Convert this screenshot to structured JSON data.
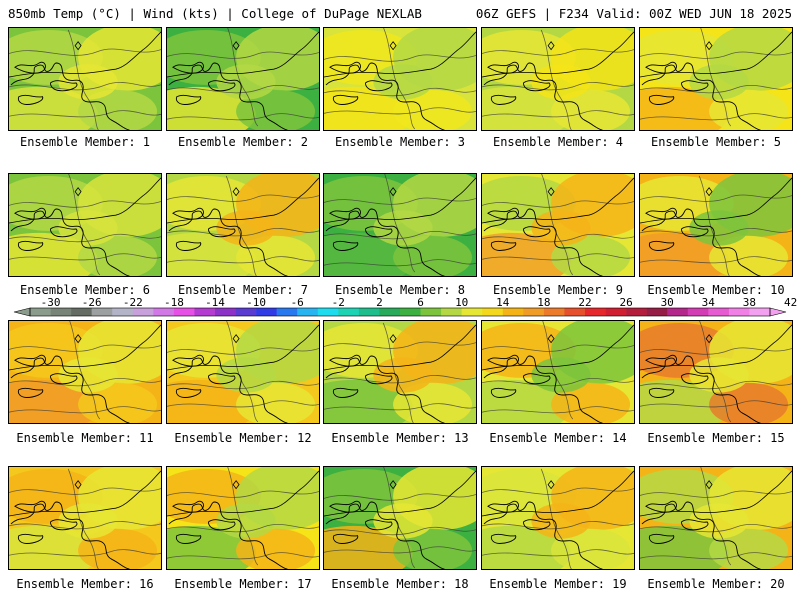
{
  "header": {
    "left": "850mb Temp (°C) | Wind (kts) | College of DuPage NEXLAB",
    "right": "06Z GEFS | F234 Valid: 00Z WED JUN 18 2025"
  },
  "member_label_prefix": "Ensemble Member:",
  "members": [
    {
      "num": "1",
      "c": [
        "#7cc43c",
        "#b4d844",
        "#e6e634",
        "#d8e43c"
      ]
    },
    {
      "num": "2",
      "c": [
        "#3cb040",
        "#7cc43c",
        "#b4d844",
        "#e6e634"
      ]
    },
    {
      "num": "3",
      "c": [
        "#d8e43c",
        "#f0e81c",
        "#b4d844",
        "#f4e418"
      ]
    },
    {
      "num": "4",
      "c": [
        "#b4d844",
        "#e6e634",
        "#f4e418",
        "#d8e43c"
      ]
    },
    {
      "num": "5",
      "c": [
        "#f4e418",
        "#e6e634",
        "#b4d844",
        "#f4b418"
      ]
    },
    {
      "num": "6",
      "c": [
        "#7cc43c",
        "#b4d844",
        "#d8e43c",
        "#e6e634"
      ]
    },
    {
      "num": "7",
      "c": [
        "#b4d844",
        "#e6e634",
        "#f4b418",
        "#d8e43c"
      ]
    },
    {
      "num": "8",
      "c": [
        "#3cb040",
        "#7cc43c",
        "#b4d844",
        "#58b840"
      ]
    },
    {
      "num": "9",
      "c": [
        "#e6e634",
        "#b4d844",
        "#f4b418",
        "#f0a028"
      ]
    },
    {
      "num": "10",
      "c": [
        "#f4b418",
        "#e6e634",
        "#7cc43c",
        "#f09c28"
      ]
    },
    {
      "num": "11",
      "c": [
        "#f4b418",
        "#f4c81c",
        "#e6e634",
        "#f09c28"
      ]
    },
    {
      "num": "12",
      "c": [
        "#f4c81c",
        "#e6e634",
        "#b4d844",
        "#f4b418"
      ]
    },
    {
      "num": "13",
      "c": [
        "#b4d844",
        "#e6e634",
        "#f4b418",
        "#7cc43c"
      ]
    },
    {
      "num": "14",
      "c": [
        "#e6e634",
        "#f4b418",
        "#7cc43c",
        "#b4d844"
      ]
    },
    {
      "num": "15",
      "c": [
        "#f4b418",
        "#e67c2c",
        "#e6e634",
        "#b4d844"
      ]
    },
    {
      "num": "16",
      "c": [
        "#f4c81c",
        "#f4b418",
        "#e6e634",
        "#d8e43c"
      ]
    },
    {
      "num": "17",
      "c": [
        "#f4e418",
        "#f4b418",
        "#b4d844",
        "#7cc43c"
      ]
    },
    {
      "num": "18",
      "c": [
        "#3cb040",
        "#7cc43c",
        "#e6e634",
        "#f4b418"
      ]
    },
    {
      "num": "19",
      "c": [
        "#e6e634",
        "#d8e43c",
        "#f4b418",
        "#b4d844"
      ]
    },
    {
      "num": "20",
      "c": [
        "#f4b418",
        "#b4d844",
        "#e6e634",
        "#7cc43c"
      ]
    }
  ],
  "colorbar": {
    "labels": [
      "-30",
      "-26",
      "-22",
      "-18",
      "-14",
      "-10",
      "-6",
      "-2",
      "2",
      "6",
      "10",
      "14",
      "18",
      "22",
      "26",
      "30",
      "34",
      "38",
      "42"
    ],
    "colors": [
      "#8c9c8c",
      "#788478",
      "#646c64",
      "#9ca0a0",
      "#b4b4c8",
      "#c8a0dc",
      "#d278e6",
      "#e650e6",
      "#b43cd2",
      "#8c32c8",
      "#5a3cd2",
      "#323ce6",
      "#2878f0",
      "#28b4f0",
      "#1edcf0",
      "#1ed2b4",
      "#1ebe8c",
      "#28aa5a",
      "#3cb040",
      "#7cc43c",
      "#b4d844",
      "#e6e634",
      "#f4d81c",
      "#f4b418",
      "#f09c28",
      "#ec7c2c",
      "#e6502c",
      "#e6282c",
      "#d21e32",
      "#b41e3c",
      "#961e46",
      "#b4288c",
      "#d23cb4",
      "#e65ad2",
      "#f080e6",
      "#f4a0f0"
    ]
  }
}
